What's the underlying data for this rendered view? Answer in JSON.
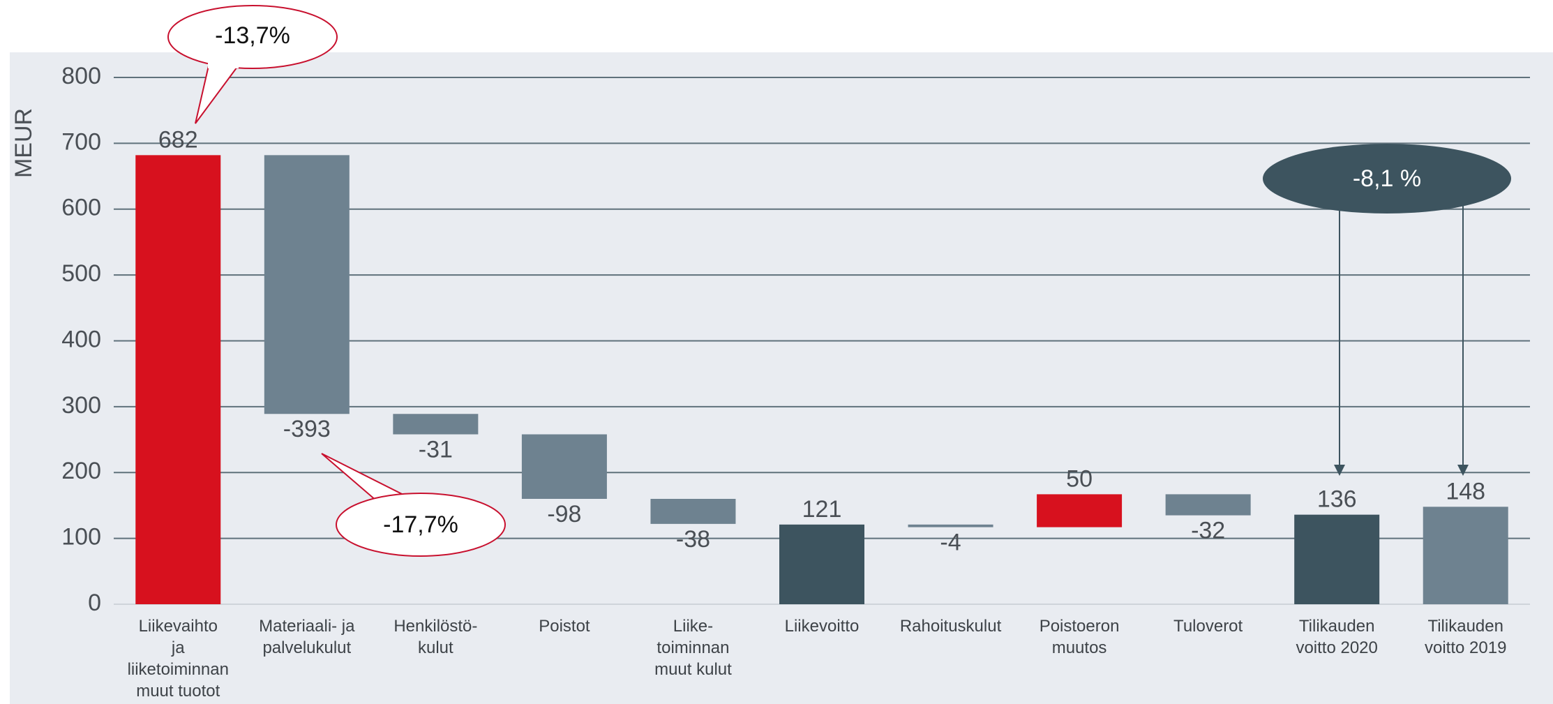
{
  "chart_data": {
    "type": "waterfall",
    "y_label": "MEUR",
    "categories": [
      "Liikevaihto\nja\nliiketoiminnan\nmuut tuotot",
      "Materiaali- ja\npalvelukulut",
      "Henkilöstö-\nkulut",
      "Poistot",
      "Liike-\ntoiminnan\nmuut kulut",
      "Liikevoitto",
      "Rahoituskulut",
      "Poistoeron\nmuutos",
      "Tuloverot",
      "Tilikauden\nvoitto 2020",
      "Tilikauden\nvoitto 2019"
    ],
    "values": [
      682,
      -393,
      -31,
      -98,
      -38,
      121,
      -4,
      50,
      -32,
      136,
      148
    ],
    "colors": [
      "#d7111e",
      "#6e8290",
      "#6e8290",
      "#6e8290",
      "#6e8290",
      "#3d545f",
      "#6e8290",
      "#d7111e",
      "#6e8290",
      "#3d545f",
      "#6e8290"
    ],
    "total_indices": [
      0,
      5,
      9,
      10
    ],
    "ylim": [
      0,
      800
    ],
    "yticks": [
      0,
      100,
      200,
      300,
      400,
      500,
      600,
      700,
      800
    ],
    "grid": true,
    "annotations": [
      "-13,7%",
      "-17,7%",
      "-8,1 %"
    ]
  }
}
